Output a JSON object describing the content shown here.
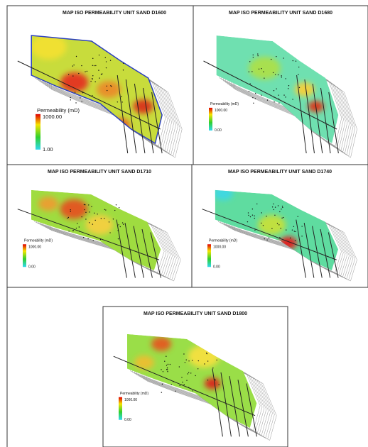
{
  "panels": [
    {
      "title": "MAP ISO PERMEABILITY UNIT SAND D1600",
      "legend_title": "Permeability  (mD)",
      "max_label": "1000.00",
      "min_label": "1.00"
    },
    {
      "title": "MAP ISO PERMEABILITY UNIT SAND D1680",
      "legend_title": "Permeability  (mD)",
      "max_label": "1000.00",
      "min_label": "0.00"
    },
    {
      "title": "MAP ISO PERMEABILITY UNIT SAND D1710",
      "legend_title": "Permeability  (mD)",
      "max_label": "1000.00",
      "min_label": "0.00"
    },
    {
      "title": "MAP ISO PERMEABILITY UNIT SAND D1740",
      "legend_title": "Permeability  (mD)",
      "max_label": "1000.00",
      "min_label": "0.00"
    },
    {
      "title": "MAP ISO PERMEABILITY UNIT SAND D1800",
      "legend_title": "Permeability  (mD)",
      "max_label": "1000.00",
      "min_label": "0.00"
    }
  ]
}
